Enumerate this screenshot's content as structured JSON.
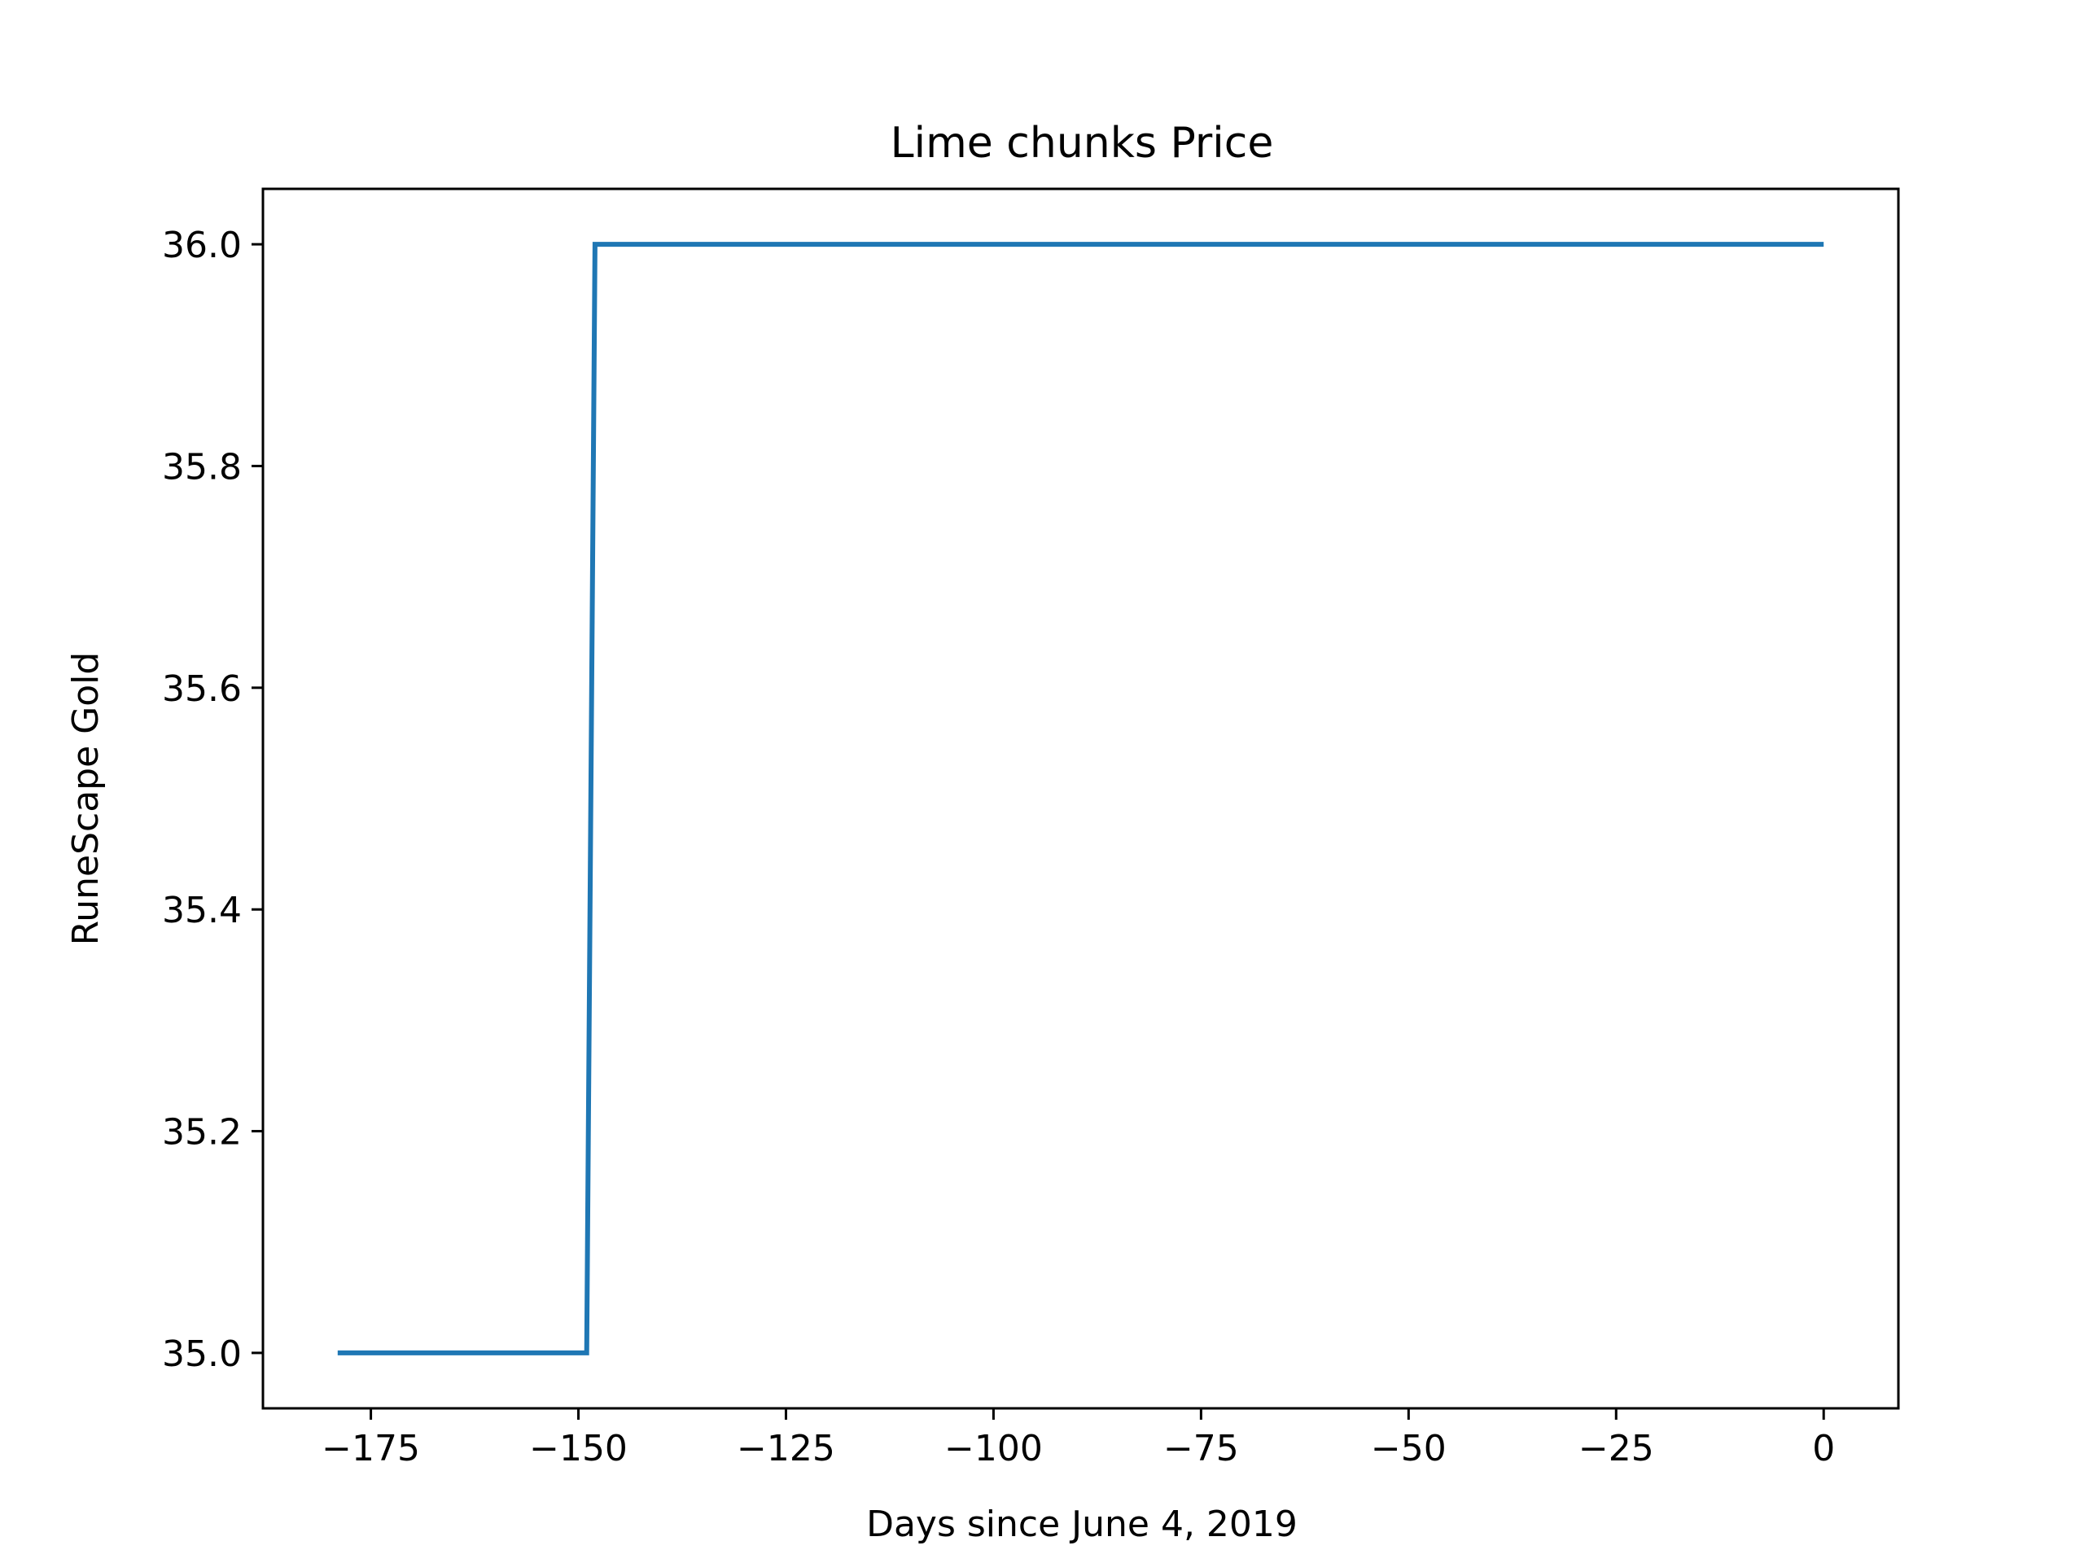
{
  "chart_data": {
    "type": "line",
    "title": "Lime chunks Price",
    "xlabel": "Days since June 4, 2019",
    "ylabel": "RuneScape Gold",
    "xlim": [
      -188,
      9
    ],
    "ylim": [
      34.95,
      36.05
    ],
    "xticks": [
      -175,
      -150,
      -125,
      -100,
      -75,
      -50,
      -25,
      0
    ],
    "xtick_labels": [
      "−175",
      "−150",
      "−125",
      "−100",
      "−75",
      "−50",
      "−25",
      "0"
    ],
    "yticks": [
      35.0,
      35.2,
      35.4,
      35.6,
      35.8,
      36.0
    ],
    "ytick_labels": [
      "35.0",
      "35.2",
      "35.4",
      "35.6",
      "35.8",
      "36.0"
    ],
    "grid": false,
    "series": [
      {
        "color": "#1f77b4",
        "x": [
          -179,
          -149,
          -148,
          0
        ],
        "y": [
          35.0,
          35.0,
          36.0,
          36.0
        ]
      }
    ]
  }
}
